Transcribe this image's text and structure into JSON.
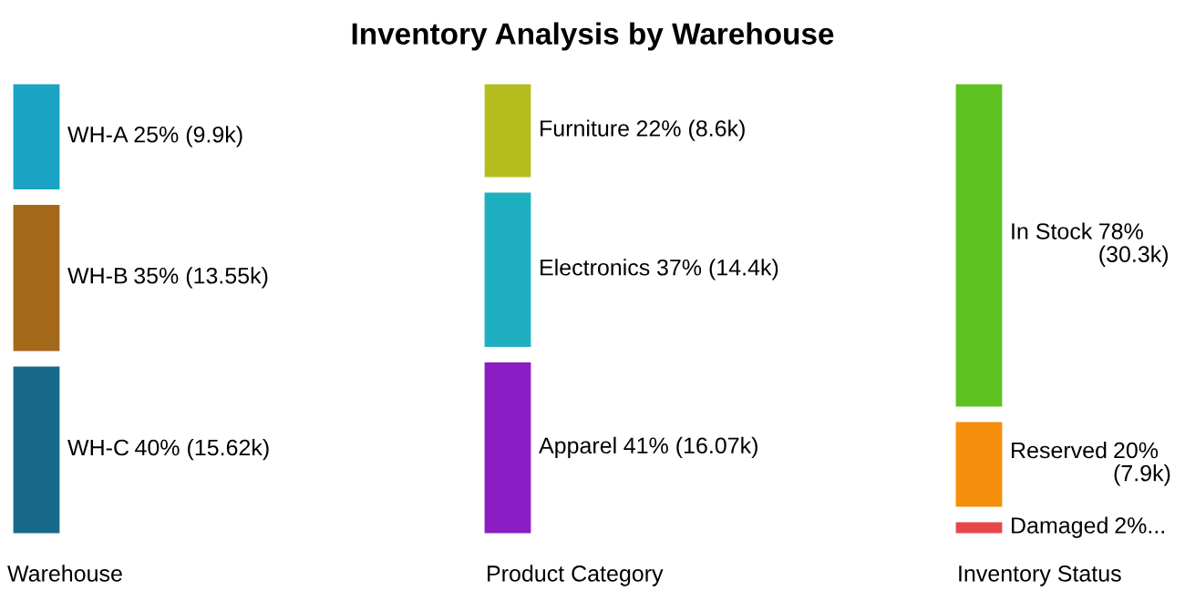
{
  "chart_data": {
    "type": "other",
    "title": "Inventory Analysis by Warehouse",
    "categories": [
      "WH-A",
      "WH-B",
      "WH-C",
      "Furniture",
      "Electronics",
      "Apparel",
      "In Stock",
      "Reserved",
      "Damaged"
    ],
    "series": [
      {
        "name": "Warehouse",
        "values": [
          25,
          35,
          40,
          null,
          null,
          null,
          null,
          null,
          null
        ],
        "colors": [
          "#1aa3c4",
          "#a5691b",
          "#176a8a",
          null,
          null,
          null,
          null,
          null,
          null
        ],
        "value_labels": [
          "25% (9.9k)",
          "35% (13.55k)",
          "40% (15.62k)",
          null,
          null,
          null,
          null,
          null,
          null
        ]
      },
      {
        "name": "Product Category",
        "values": [
          null,
          null,
          null,
          22,
          37,
          41,
          null,
          null,
          null
        ],
        "colors": [
          null,
          null,
          null,
          "#b5bd1e",
          "#1eb0c0",
          "#8a1dc4",
          null,
          null,
          null
        ],
        "value_labels": [
          null,
          null,
          null,
          "22% (8.6k)",
          "37% (14.4k)",
          "41% (16.07k)",
          null,
          null,
          null
        ]
      },
      {
        "name": "Inventory Status",
        "values": [
          null,
          null,
          null,
          null,
          null,
          null,
          78,
          20,
          2
        ],
        "colors": [
          null,
          null,
          null,
          null,
          null,
          null,
          "#5cc21f",
          "#f58e0a",
          "#e8474a"
        ],
        "value_labels": [
          null,
          null,
          null,
          null,
          null,
          null,
          "78%\n(30.3k)",
          "20%\n(7.9k)",
          "2%..."
        ]
      }
    ]
  }
}
